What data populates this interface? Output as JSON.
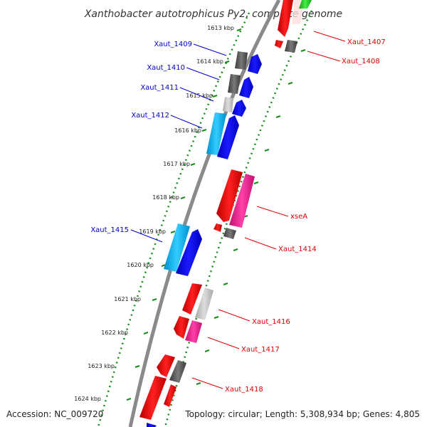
{
  "title": "Xanthobacter autotrophicus Py2, complete genome",
  "accession": "Accession: NC_009720",
  "topology": "Topology: circular; Length: 5,308,934 bp; Genes: 4,805",
  "colors": {
    "backbone": "#8a8a8a",
    "ruler": "#1a8a1a",
    "left_label": "#0000cc",
    "right_label": "#dd0000",
    "blue": "#0000ee",
    "cyan": "#00b8ee",
    "red": "#ee0000",
    "magenta": "#ee1493",
    "gray": "#5a5a5a",
    "lightgray": "#c0c0c0",
    "green": "#22cc22"
  },
  "ruler_ticks": [
    "1613 kbp",
    "1614 kbp",
    "1615 kbp",
    "1616 kbp",
    "1617 kbp",
    "1618 kbp",
    "1619 kbp",
    "1620 kbp",
    "1621 kbp",
    "1622 kbp",
    "1623 kbp",
    "1624 kbp"
  ],
  "left_labels": [
    "Xaut_1409",
    "Xaut_1410",
    "Xaut_1411",
    "Xaut_1412",
    "Xaut_1415"
  ],
  "right_labels": [
    "Xaut_1407",
    "Xaut_1408",
    "xseA",
    "Xaut_1414",
    "Xaut_1416",
    "Xaut_1417",
    "Xaut_1418"
  ]
}
